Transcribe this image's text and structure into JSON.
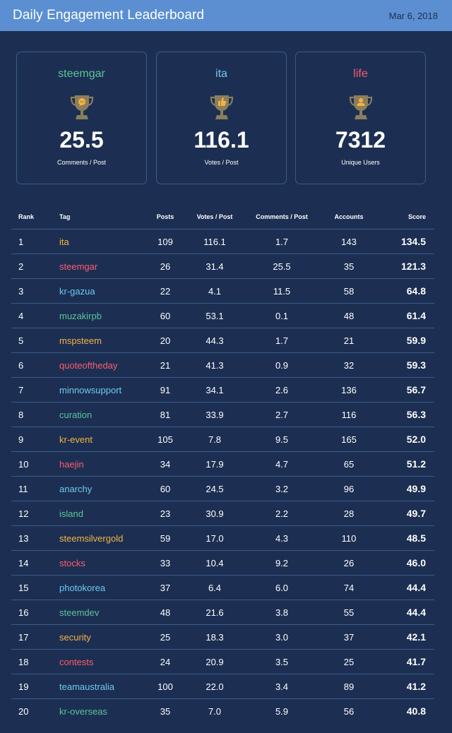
{
  "header": {
    "title": "Daily Engagement Leaderboard",
    "date": "Mar 6, 2018"
  },
  "colors": {
    "green": "#5cc39a",
    "blue": "#6ec9ef",
    "red": "#ff5a6e",
    "orange": "#f5b341",
    "trophy": "#8a7e5c"
  },
  "cards": [
    {
      "tag": "steemgar",
      "color": "#5cc39a",
      "icon": "trophy-comment-icon",
      "value": "25.5",
      "label": "Comments / Post"
    },
    {
      "tag": "ita",
      "color": "#6ec9ef",
      "icon": "trophy-thumbs-up-icon",
      "value": "116.1",
      "label": "Votes / Post"
    },
    {
      "tag": "life",
      "color": "#ff5a6e",
      "icon": "trophy-user-icon",
      "value": "7312",
      "label": "Unique Users"
    }
  ],
  "table": {
    "headers": {
      "rank": "Rank",
      "tag": "Tag",
      "posts": "Posts",
      "votes": "Votes / Post",
      "comments": "Comments / Post",
      "accounts": "Accounts",
      "score": "Score"
    },
    "rows": [
      {
        "rank": "1",
        "tag": "ita",
        "color": "#f5b341",
        "posts": "109",
        "votes": "116.1",
        "comments": "1.7",
        "accounts": "143",
        "score": "134.5"
      },
      {
        "rank": "2",
        "tag": "steemgar",
        "color": "#ff5a6e",
        "posts": "26",
        "votes": "31.4",
        "comments": "25.5",
        "accounts": "35",
        "score": "121.3"
      },
      {
        "rank": "3",
        "tag": "kr-gazua",
        "color": "#6ec9ef",
        "posts": "22",
        "votes": "4.1",
        "comments": "11.5",
        "accounts": "58",
        "score": "64.8"
      },
      {
        "rank": "4",
        "tag": "muzakirpb",
        "color": "#5cc39a",
        "posts": "60",
        "votes": "53.1",
        "comments": "0.1",
        "accounts": "48",
        "score": "61.4"
      },
      {
        "rank": "5",
        "tag": "mspsteem",
        "color": "#f5b341",
        "posts": "20",
        "votes": "44.3",
        "comments": "1.7",
        "accounts": "21",
        "score": "59.9"
      },
      {
        "rank": "6",
        "tag": "quoteoftheday",
        "color": "#ff5a6e",
        "posts": "21",
        "votes": "41.3",
        "comments": "0.9",
        "accounts": "32",
        "score": "59.3"
      },
      {
        "rank": "7",
        "tag": "minnowsupport",
        "color": "#6ec9ef",
        "posts": "91",
        "votes": "34.1",
        "comments": "2.6",
        "accounts": "136",
        "score": "56.7"
      },
      {
        "rank": "8",
        "tag": "curation",
        "color": "#5cc39a",
        "posts": "81",
        "votes": "33.9",
        "comments": "2.7",
        "accounts": "116",
        "score": "56.3"
      },
      {
        "rank": "9",
        "tag": "kr-event",
        "color": "#f5b341",
        "posts": "105",
        "votes": "7.8",
        "comments": "9.5",
        "accounts": "165",
        "score": "52.0"
      },
      {
        "rank": "10",
        "tag": "haejin",
        "color": "#ff5a6e",
        "posts": "34",
        "votes": "17.9",
        "comments": "4.7",
        "accounts": "65",
        "score": "51.2"
      },
      {
        "rank": "11",
        "tag": "anarchy",
        "color": "#6ec9ef",
        "posts": "60",
        "votes": "24.5",
        "comments": "3.2",
        "accounts": "96",
        "score": "49.9"
      },
      {
        "rank": "12",
        "tag": "island",
        "color": "#5cc39a",
        "posts": "23",
        "votes": "30.9",
        "comments": "2.2",
        "accounts": "28",
        "score": "49.7"
      },
      {
        "rank": "13",
        "tag": "steemsilvergold",
        "color": "#f5b341",
        "posts": "59",
        "votes": "17.0",
        "comments": "4.3",
        "accounts": "110",
        "score": "48.5"
      },
      {
        "rank": "14",
        "tag": "stocks",
        "color": "#ff5a6e",
        "posts": "33",
        "votes": "10.4",
        "comments": "9.2",
        "accounts": "26",
        "score": "46.0"
      },
      {
        "rank": "15",
        "tag": "photokorea",
        "color": "#6ec9ef",
        "posts": "37",
        "votes": "6.4",
        "comments": "6.0",
        "accounts": "74",
        "score": "44.4"
      },
      {
        "rank": "16",
        "tag": "steemdev",
        "color": "#5cc39a",
        "posts": "48",
        "votes": "21.6",
        "comments": "3.8",
        "accounts": "55",
        "score": "44.4"
      },
      {
        "rank": "17",
        "tag": "security",
        "color": "#f5b341",
        "posts": "25",
        "votes": "18.3",
        "comments": "3.0",
        "accounts": "37",
        "score": "42.1"
      },
      {
        "rank": "18",
        "tag": "contests",
        "color": "#ff5a6e",
        "posts": "24",
        "votes": "20.9",
        "comments": "3.5",
        "accounts": "25",
        "score": "41.7"
      },
      {
        "rank": "19",
        "tag": "teamaustralia",
        "color": "#6ec9ef",
        "posts": "100",
        "votes": "22.0",
        "comments": "3.4",
        "accounts": "89",
        "score": "41.2"
      },
      {
        "rank": "20",
        "tag": "kr-overseas",
        "color": "#5cc39a",
        "posts": "35",
        "votes": "7.0",
        "comments": "5.9",
        "accounts": "56",
        "score": "40.8"
      }
    ]
  }
}
